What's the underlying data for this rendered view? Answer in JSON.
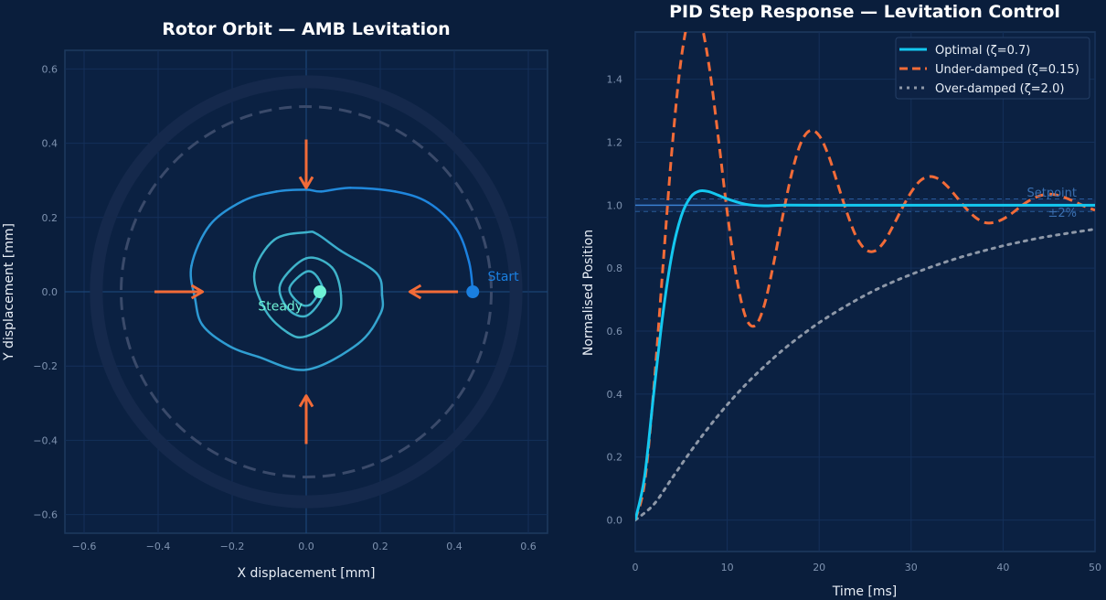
{
  "colors": {
    "background": "#0a1e3c",
    "axes_face": "#0b2142",
    "orbit_outer": "#1a7fe0",
    "orbit_inner": "#3fb3c9",
    "arrow": "#f26b38",
    "start": "#1a7fe0",
    "steady": "#6ff2d6",
    "optimal": "#14c8f0",
    "underdamped": "#f26b38",
    "overdamped": "#8e98a8",
    "setpoint": "#3b7fd0"
  },
  "chart_data": [
    {
      "type": "line",
      "title": "Rotor Orbit — AMB Levitation",
      "xlabel": "X displacement [mm]",
      "ylabel": "Y displacement [mm]",
      "xlim": [
        -0.65,
        0.65
      ],
      "ylim": [
        -0.65,
        0.65
      ],
      "xticks": [
        "−0.6",
        "−0.4",
        "−0.2",
        "0.0",
        "0.2",
        "0.4",
        "0.6"
      ],
      "yticks": [
        "−0.6",
        "−0.4",
        "−0.2",
        "0.0",
        "0.2",
        "0.4",
        "0.6"
      ],
      "grid": true,
      "clearance_radius": 0.5,
      "stator_radius": 0.567,
      "orbit": [
        [
          0.45,
          0
        ],
        [
          0.44,
          0.08
        ],
        [
          0.405,
          0.17
        ],
        [
          0.33,
          0.24
        ],
        [
          0.24,
          0.27
        ],
        [
          0.12,
          0.28
        ],
        [
          0.04,
          0.27
        ],
        [
          0,
          0.275
        ],
        [
          -0.08,
          0.27
        ],
        [
          -0.17,
          0.245
        ],
        [
          -0.26,
          0.18
        ],
        [
          -0.31,
          0.07
        ],
        [
          -0.3,
          -0.02
        ],
        [
          -0.28,
          -0.09
        ],
        [
          -0.21,
          -0.145
        ],
        [
          -0.13,
          -0.175
        ],
        [
          0,
          -0.21
        ],
        [
          0.14,
          -0.14
        ],
        [
          0.2,
          -0.06
        ],
        [
          0.205,
          -0.01
        ],
        [
          0.19,
          0.05
        ],
        [
          0.094,
          0.11
        ],
        [
          0.03,
          0.155
        ],
        [
          0,
          0.16
        ],
        [
          -0.086,
          0.14
        ],
        [
          -0.14,
          0.05
        ],
        [
          -0.11,
          -0.05
        ],
        [
          -0.05,
          -0.11
        ],
        [
          0,
          -0.12
        ],
        [
          0.08,
          -0.07
        ],
        [
          0.094,
          -0.01
        ],
        [
          0.07,
          0.065
        ],
        [
          0,
          0.09
        ],
        [
          -0.07,
          0.02
        ],
        [
          -0.05,
          -0.045
        ],
        [
          0,
          -0.065
        ],
        [
          0.045,
          -0.01
        ],
        [
          0.03,
          0.04
        ],
        [
          0,
          0.054
        ],
        [
          -0.045,
          0.01
        ],
        [
          -0.02,
          -0.03
        ],
        [
          0.01,
          -0.035
        ],
        [
          0.037,
          0
        ]
      ],
      "force_arrows": [
        {
          "from": [
            0,
            0.41
          ],
          "to": [
            0,
            0.28
          ]
        },
        {
          "from": [
            0,
            -0.41
          ],
          "to": [
            0,
            -0.28
          ]
        },
        {
          "from": [
            -0.41,
            0
          ],
          "to": [
            -0.28,
            0
          ]
        },
        {
          "from": [
            0.41,
            0
          ],
          "to": [
            0.28,
            0
          ]
        }
      ],
      "start": {
        "point": [
          0.45,
          0
        ],
        "label": "Start"
      },
      "steady": {
        "point": [
          0.037,
          0
        ],
        "label": "Steady"
      }
    },
    {
      "type": "line",
      "title": "PID Step Response — Levitation Control",
      "xlabel": "Time [ms]",
      "ylabel": "Normalised Position",
      "xlim": [
        0,
        50
      ],
      "ylim": [
        -0.1,
        1.55
      ],
      "xticks": [
        "0",
        "10",
        "20",
        "30",
        "40",
        "50"
      ],
      "yticks": [
        "0.0",
        "0.2",
        "0.4",
        "0.6",
        "0.8",
        "1.0",
        "1.2",
        "1.4"
      ],
      "grid": true,
      "legend": "top-right",
      "setpoint": {
        "value": 1.0,
        "label": "Setpoint"
      },
      "band": {
        "low": 0.98,
        "high": 1.02,
        "label": "±2%"
      },
      "series": [
        {
          "name": "Optimal (ζ=0.7)",
          "style": "solid",
          "x": [
            0,
            1,
            2,
            3,
            4,
            5,
            6,
            7,
            8,
            9,
            10,
            12,
            14,
            16,
            20,
            30,
            40,
            50
          ],
          "y": [
            0,
            0.135,
            0.4,
            0.653,
            0.846,
            0.965,
            1.025,
            1.045,
            1.043,
            1.032,
            1.02,
            1.003,
            0.998,
            1.0,
            1.0,
            1.0,
            1.0,
            1.0
          ]
        },
        {
          "name": "Under-damped (ζ=0.15)",
          "style": "dashed",
          "x": [
            0,
            1,
            2,
            3,
            4,
            5,
            6,
            7,
            8,
            9,
            10,
            11,
            12,
            13,
            14,
            15,
            16,
            17,
            18,
            19,
            20,
            21,
            22,
            23,
            24,
            25,
            26,
            27,
            28,
            29,
            30,
            31,
            32,
            33,
            34,
            35,
            36,
            37,
            38,
            39,
            40,
            41,
            42,
            43,
            44,
            45,
            46,
            47,
            48,
            49,
            50
          ],
          "y": [
            0,
            0.115,
            0.413,
            0.801,
            1.18,
            1.466,
            1.608,
            1.594,
            1.448,
            1.222,
            0.978,
            0.773,
            0.645,
            0.617,
            0.679,
            0.808,
            0.96,
            1.099,
            1.197,
            1.237,
            1.221,
            1.159,
            1.069,
            0.978,
            0.902,
            0.86,
            0.854,
            0.881,
            0.932,
            0.989,
            1.041,
            1.078,
            1.091,
            1.083,
            1.058,
            1.024,
            0.989,
            0.961,
            0.945,
            0.945,
            0.956,
            0.975,
            0.998,
            1.017,
            1.03,
            1.035,
            1.031,
            1.021,
            1.008,
            0.995,
            0.984
          ]
        },
        {
          "name": "Over-damped (ζ=2.0)",
          "style": "dotted",
          "x": [
            0,
            2,
            4,
            6,
            8,
            10,
            12,
            14,
            16,
            18,
            20,
            22,
            24,
            26,
            28,
            30,
            32,
            34,
            36,
            38,
            40,
            42,
            44,
            46,
            48,
            50
          ],
          "y": [
            0,
            0.049,
            0.133,
            0.217,
            0.295,
            0.366,
            0.43,
            0.487,
            0.539,
            0.585,
            0.627,
            0.664,
            0.698,
            0.729,
            0.756,
            0.78,
            0.802,
            0.822,
            0.84,
            0.856,
            0.871,
            0.884,
            0.896,
            0.906,
            0.915,
            0.924
          ]
        }
      ]
    }
  ]
}
